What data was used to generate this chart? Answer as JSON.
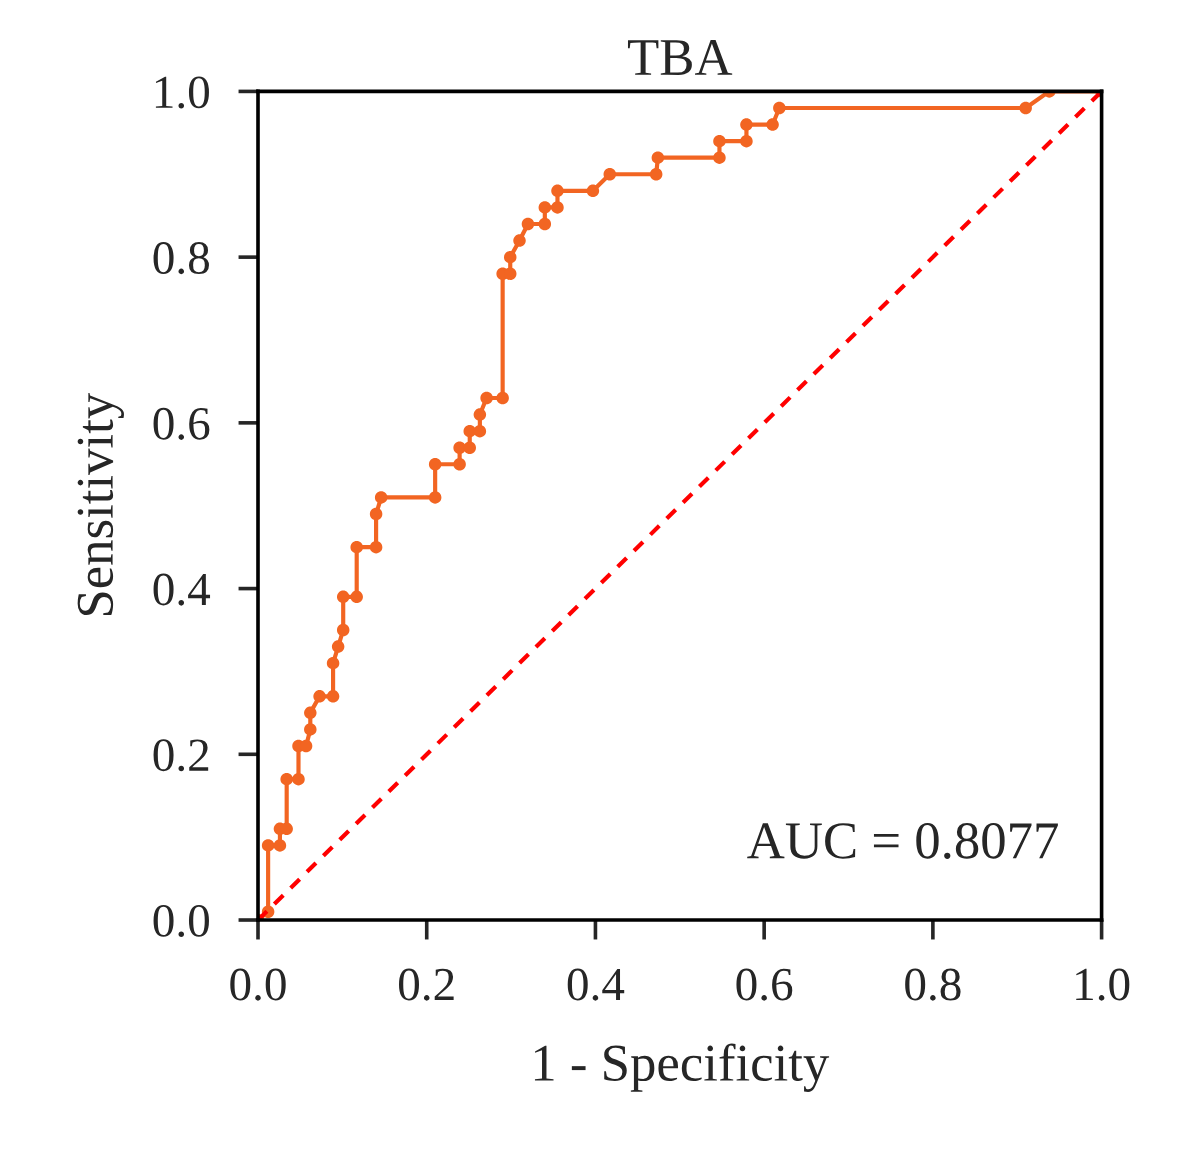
{
  "chart_data": {
    "type": "line",
    "title": "TBA",
    "xlabel": "1 - Specificity",
    "ylabel": "Sensitivity",
    "series": [
      {
        "color": "#f26522",
        "marker": "circle",
        "line_style": "solid",
        "x": [
          0,
          0.012,
          0.012,
          0.026,
          0.026,
          0.034,
          0.034,
          0.048,
          0.048,
          0.057,
          0.062,
          0.062,
          0.073,
          0.089,
          0.089,
          0.095,
          0.101,
          0.101,
          0.117,
          0.117,
          0.14,
          0.14,
          0.146,
          0.21,
          0.21,
          0.239,
          0.239,
          0.251,
          0.251,
          0.263,
          0.263,
          0.271,
          0.29,
          0.29,
          0.299,
          0.299,
          0.31,
          0.32,
          0.34,
          0.34,
          0.355,
          0.355,
          0.397,
          0.417,
          0.472,
          0.474,
          0.547,
          0.547,
          0.579,
          0.579,
          0.61,
          0.618,
          0.91,
          0.938,
          1.0
        ],
        "values": [
          0,
          0.01,
          0.09,
          0.09,
          0.11,
          0.11,
          0.17,
          0.17,
          0.21,
          0.21,
          0.23,
          0.25,
          0.27,
          0.27,
          0.31,
          0.33,
          0.35,
          0.39,
          0.39,
          0.45,
          0.45,
          0.49,
          0.51,
          0.51,
          0.55,
          0.55,
          0.57,
          0.57,
          0.59,
          0.59,
          0.61,
          0.63,
          0.63,
          0.78,
          0.78,
          0.8,
          0.82,
          0.84,
          0.84,
          0.86,
          0.86,
          0.88,
          0.88,
          0.9,
          0.9,
          0.92,
          0.92,
          0.94,
          0.94,
          0.96,
          0.96,
          0.98,
          0.98,
          1.0,
          1.0
        ]
      },
      {
        "color": "#ff0000",
        "marker": "none",
        "line_style": "dashed",
        "x": [
          0,
          1
        ],
        "values": [
          0,
          1
        ]
      }
    ],
    "xlim": [
      0,
      1
    ],
    "ylim": [
      0,
      1
    ],
    "xticks": [
      {
        "value": 0,
        "label": "0.0"
      },
      {
        "value": 0.2,
        "label": "0.2"
      },
      {
        "value": 0.4,
        "label": "0.4"
      },
      {
        "value": 0.6,
        "label": "0.6"
      },
      {
        "value": 0.8,
        "label": "0.8"
      },
      {
        "value": 1,
        "label": "1.0"
      }
    ],
    "yticks": [
      {
        "value": 0,
        "label": "0.0"
      },
      {
        "value": 0.2,
        "label": "0.2"
      },
      {
        "value": 0.4,
        "label": "0.4"
      },
      {
        "value": 0.6,
        "label": "0.6"
      },
      {
        "value": 0.8,
        "label": "0.8"
      },
      {
        "value": 1,
        "label": "1.0"
      }
    ],
    "annotations": [
      "AUC = 0.8077"
    ],
    "grid": false,
    "legend": false
  }
}
